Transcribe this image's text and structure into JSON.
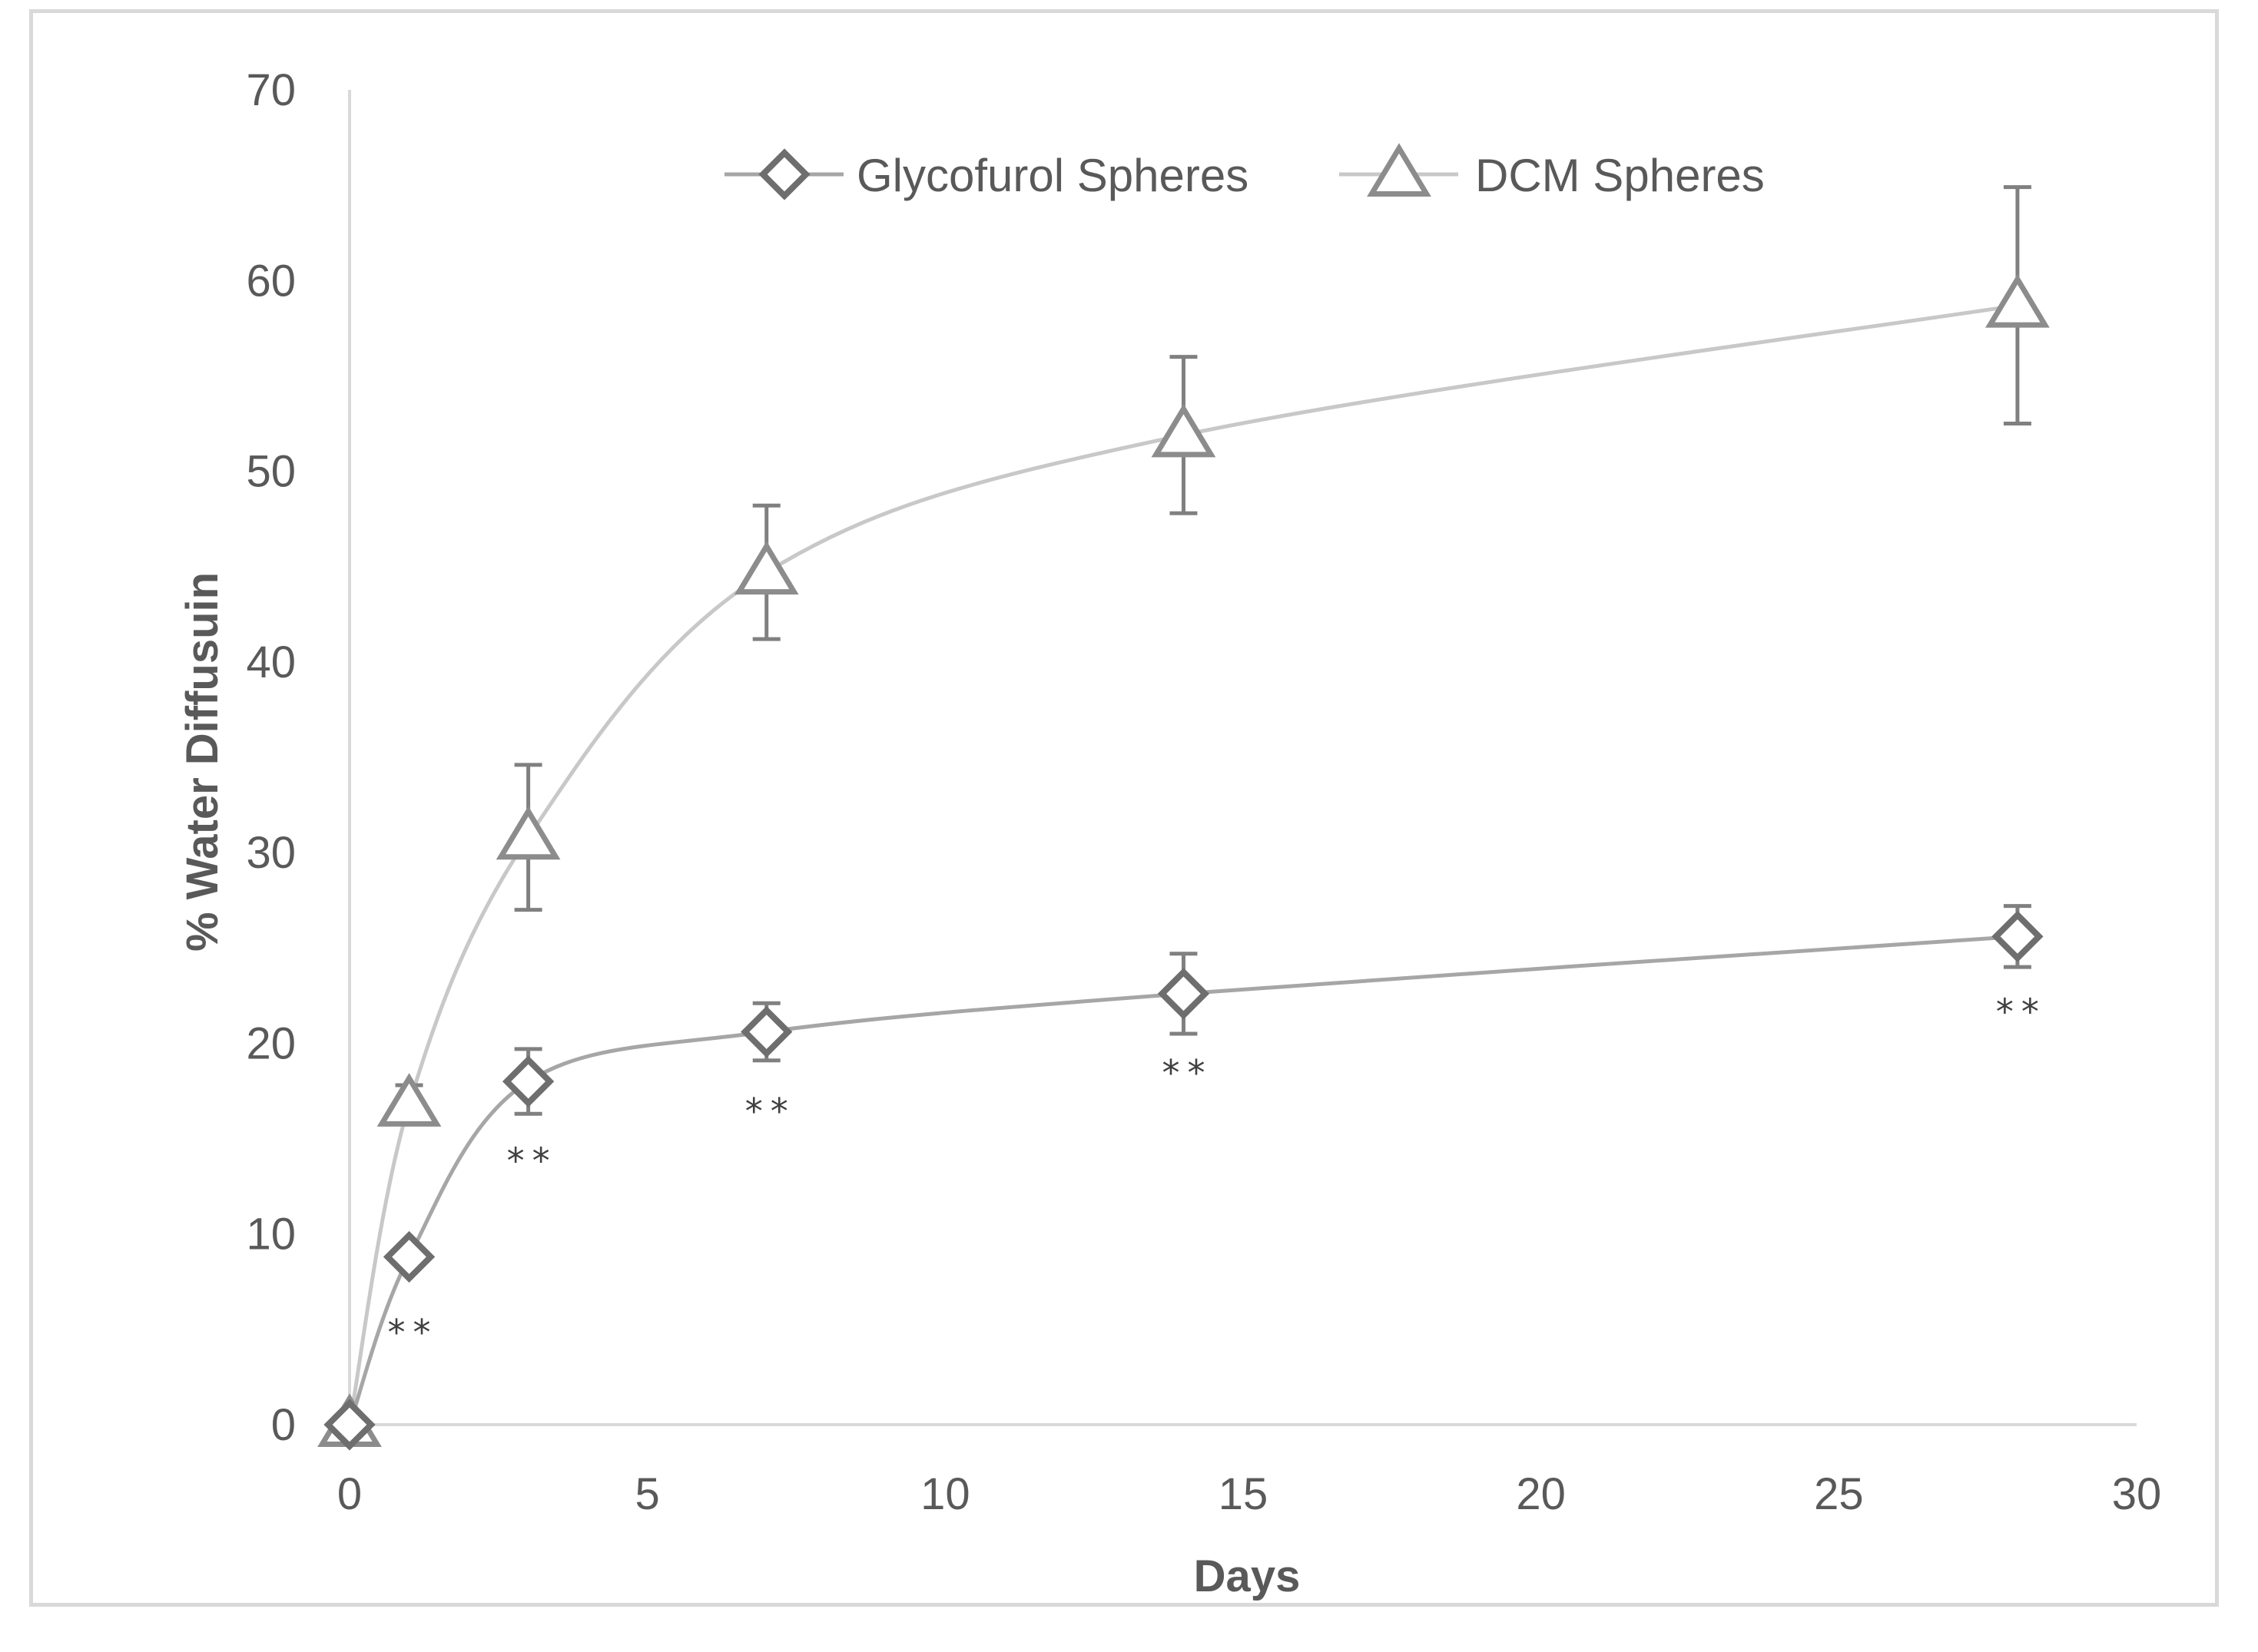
{
  "chart_data": {
    "type": "line",
    "title": "",
    "xlabel": "Days",
    "ylabel": "% Water Diffusuin",
    "xlim": [
      0,
      30
    ],
    "ylim": [
      0,
      70
    ],
    "xticks": [
      0,
      5,
      10,
      15,
      20,
      25,
      30
    ],
    "yticks": [
      0,
      10,
      20,
      30,
      40,
      50,
      60,
      70
    ],
    "grid": false,
    "legend_position": "top",
    "series": [
      {
        "name": "Glycofurol Spheres",
        "marker": "diamond",
        "color": "#6e6e6e",
        "line_color": "#a6a6a6",
        "x": [
          0,
          1,
          3,
          7,
          14,
          28
        ],
        "y": [
          0,
          8.8,
          18.0,
          20.6,
          22.6,
          25.6
        ],
        "error": [
          0,
          0,
          1.7,
          1.5,
          2.1,
          1.6
        ]
      },
      {
        "name": "DCM Spheres",
        "marker": "triangle",
        "color": "#8c8c8c",
        "line_color": "#c8c8c8",
        "x": [
          0,
          1,
          3,
          7,
          14,
          28
        ],
        "y": [
          0,
          16.8,
          30.8,
          44.7,
          51.9,
          58.7
        ],
        "error": [
          0,
          1.0,
          3.8,
          3.5,
          4.1,
          6.2
        ]
      }
    ],
    "annotations": [
      {
        "text": "**",
        "x": 1,
        "y": 5.0
      },
      {
        "text": "**",
        "x": 3,
        "y": 14.0
      },
      {
        "text": "**",
        "x": 7,
        "y": 16.6
      },
      {
        "text": "**",
        "x": 14,
        "y": 18.6
      },
      {
        "text": "**",
        "x": 28,
        "y": 21.8
      }
    ]
  }
}
